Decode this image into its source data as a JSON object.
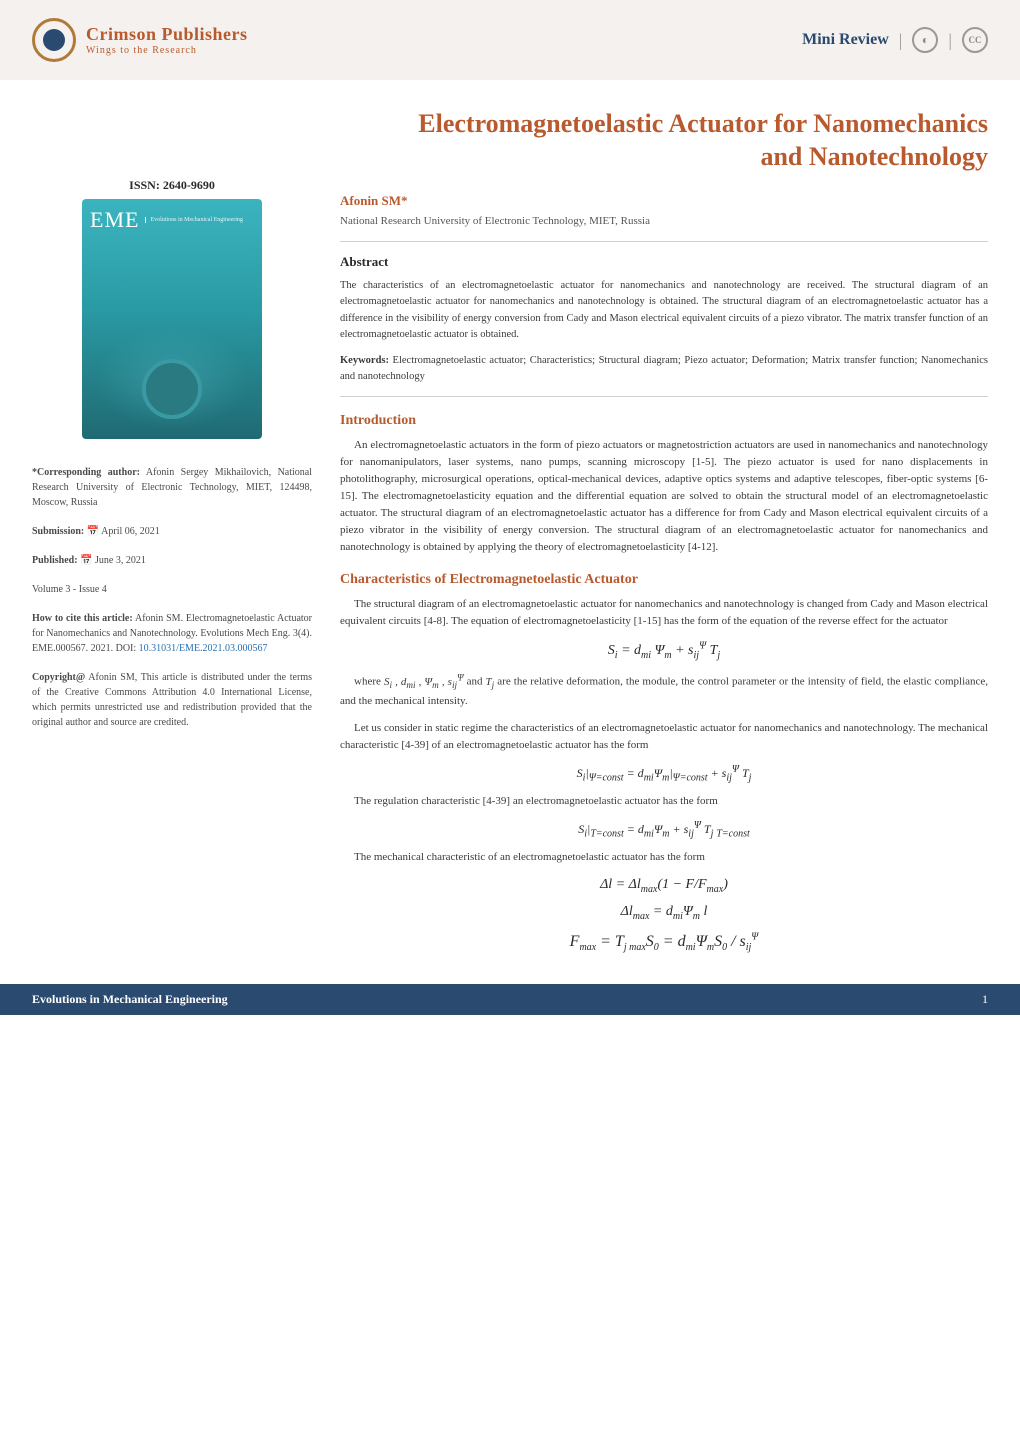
{
  "header": {
    "publisher_name": "Crimson Publishers",
    "tagline": "Wings to the Research",
    "review_label": "Mini Review",
    "badge1_glyph": "◐",
    "badge2_text": "CC"
  },
  "sidebar": {
    "issn": "ISSN: 2640-9690",
    "cover": {
      "abbrev": "EME",
      "subline": "Evolutions in\nMechanical\nEngineering"
    },
    "corresponding": {
      "label": "*Corresponding author:",
      "text": " Afonin Sergey Mikhailovich, National Research University of Electronic Technology, MIET, 124498, Moscow, Russia"
    },
    "submission": {
      "label": "Submission: ",
      "icon": "📅",
      "text": " April 06, 2021"
    },
    "published": {
      "label": "Published: ",
      "icon": "📅",
      "text": " June 3, 2021"
    },
    "volume": "Volume 3 - Issue 4",
    "howtocite": {
      "label": "How to cite this article:",
      "text": " Afonin SM. Electromagnetoelastic Actuator for Nanomechanics and Nanotechnology. Evolutions Mech Eng. 3(4). EME.000567. 2021. DOI: ",
      "doi": "10.31031/EME.2021.03.000567"
    },
    "copyright": {
      "label": "Copyright@",
      "text": " Afonin SM, This article is distributed under the terms of the Creative Commons Attribution 4.0 International License, which permits unrestricted use and redistribution provided that the original author and source are credited."
    }
  },
  "article": {
    "title": "Electromagnetoelastic Actuator for Nanomechanics and Nanotechnology",
    "author": "Afonin SM*",
    "affiliation": "National Research University of Electronic Technology, MIET, Russia",
    "abstract_heading": "Abstract",
    "abstract_text": "The characteristics of an electromagnetoelastic actuator for nanomechanics and nanotechnology are received. The structural diagram of an electromagnetoelastic actuator for nanomechanics and nanotechnology is obtained. The structural diagram of an electromagnetoelastic actuator has a difference in the visibility of energy conversion from Cady and Mason electrical equivalent circuits of a piezo vibrator. The matrix transfer function of an electromagnetoelastic actuator is obtained.",
    "keywords_label": "Keywords:",
    "keywords_text": " Electromagnetoelastic actuator; Characteristics; Structural diagram; Piezo actuator; Deformation; Matrix transfer function; Nanomechanics and nanotechnology",
    "intro_heading": "Introduction",
    "intro_text": "An electromagnetoelastic actuators in the form of piezo actuators or magnetostriction actuators are used in nanomechanics and nanotechnology for nanomanipulators, laser systems, nano pumps, scanning microscopy [1-5]. The piezo actuator is used for nano displacements in photolithography, microsurgical operations, optical-mechanical devices, adaptive optics systems and adaptive telescopes, fiber-optic systems [6-15]. The electromagnetoelasticity equation and the differential equation are solved to obtain the structural model of an electromagnetoelastic actuator. The structural diagram of an electromagnetoelastic actuator has a difference for from Cady and Mason electrical equivalent circuits of a piezo vibrator in the visibility of energy conversion. The structural diagram of an electromagnetoelastic actuator for nanomechanics and nanotechnology is obtained by applying the theory of electromagnetoelasticity [4-12].",
    "char_heading": "Characteristics of Electromagnetoelastic Actuator",
    "char_p1": "The structural diagram of an electromagnetoelastic actuator for nanomechanics and nanotechnology is changed from Cady and Mason electrical equivalent circuits [4-8]. The equation of electromagnetoelasticity [1-15] has the form of the equation of the reverse effect for the actuator",
    "eq1": "Sᵢ = d_{mi} Ψ_m + s_{ij}^Ψ T_j",
    "char_p2_a": "where ",
    "char_p2_vars": "Sᵢ , d_{mi} , Ψ_m , s_{ij}^Ψ",
    "char_p2_b": " and ",
    "char_p2_var2": "T_j",
    "char_p2_c": " are the relative deformation, the module, the control parameter or the intensity of field, the elastic compliance, and the mechanical intensity.",
    "char_p3": "Let us consider in static regime the characteristics of an electromagnetoelastic actuator for nanomechanics and nanotechnology. The mechanical characteristic [4-39] of an electromagnetoelastic actuator has the form",
    "eq2": "Sᵢ|_{Ψ=const} = d_{mi}Ψ_m|_{Ψ=const} + s_{ij}^Ψ T_j",
    "char_p4": "The regulation characteristic [4-39] an electromagnetoelastic actuator has the form",
    "eq3": "Sᵢ|_{T=const} = d_{mi}Ψ_m + s_{ij}^Ψ T_j |_{T=const}",
    "char_p5": "The mechanical characteristic of an electromagnetoelastic actuator has the form",
    "eq4": "Δl = Δl_{max}(1 − F/F_{max})",
    "eq5": "Δl_{max} = d_{mi}Ψ_m l",
    "eq6": "F_{max} = T_{j max}S₀ = d_{mi}Ψ_m S₀ / s_{ij}^Ψ"
  },
  "footer": {
    "journal": "Evolutions in Mechanical Engineering",
    "page": "1"
  },
  "styling": {
    "accent_color": "#b85a2e",
    "secondary_color": "#2b4a6f",
    "background": "#ffffff",
    "sidebar_bg": "#f5f1ee",
    "body_font": "Georgia, Times New Roman, serif",
    "title_fontsize_pt": 20,
    "body_fontsize_pt": 9,
    "cover_gradient": [
      "#3bb4bf",
      "#2a9ba5",
      "#1f6a72"
    ]
  }
}
